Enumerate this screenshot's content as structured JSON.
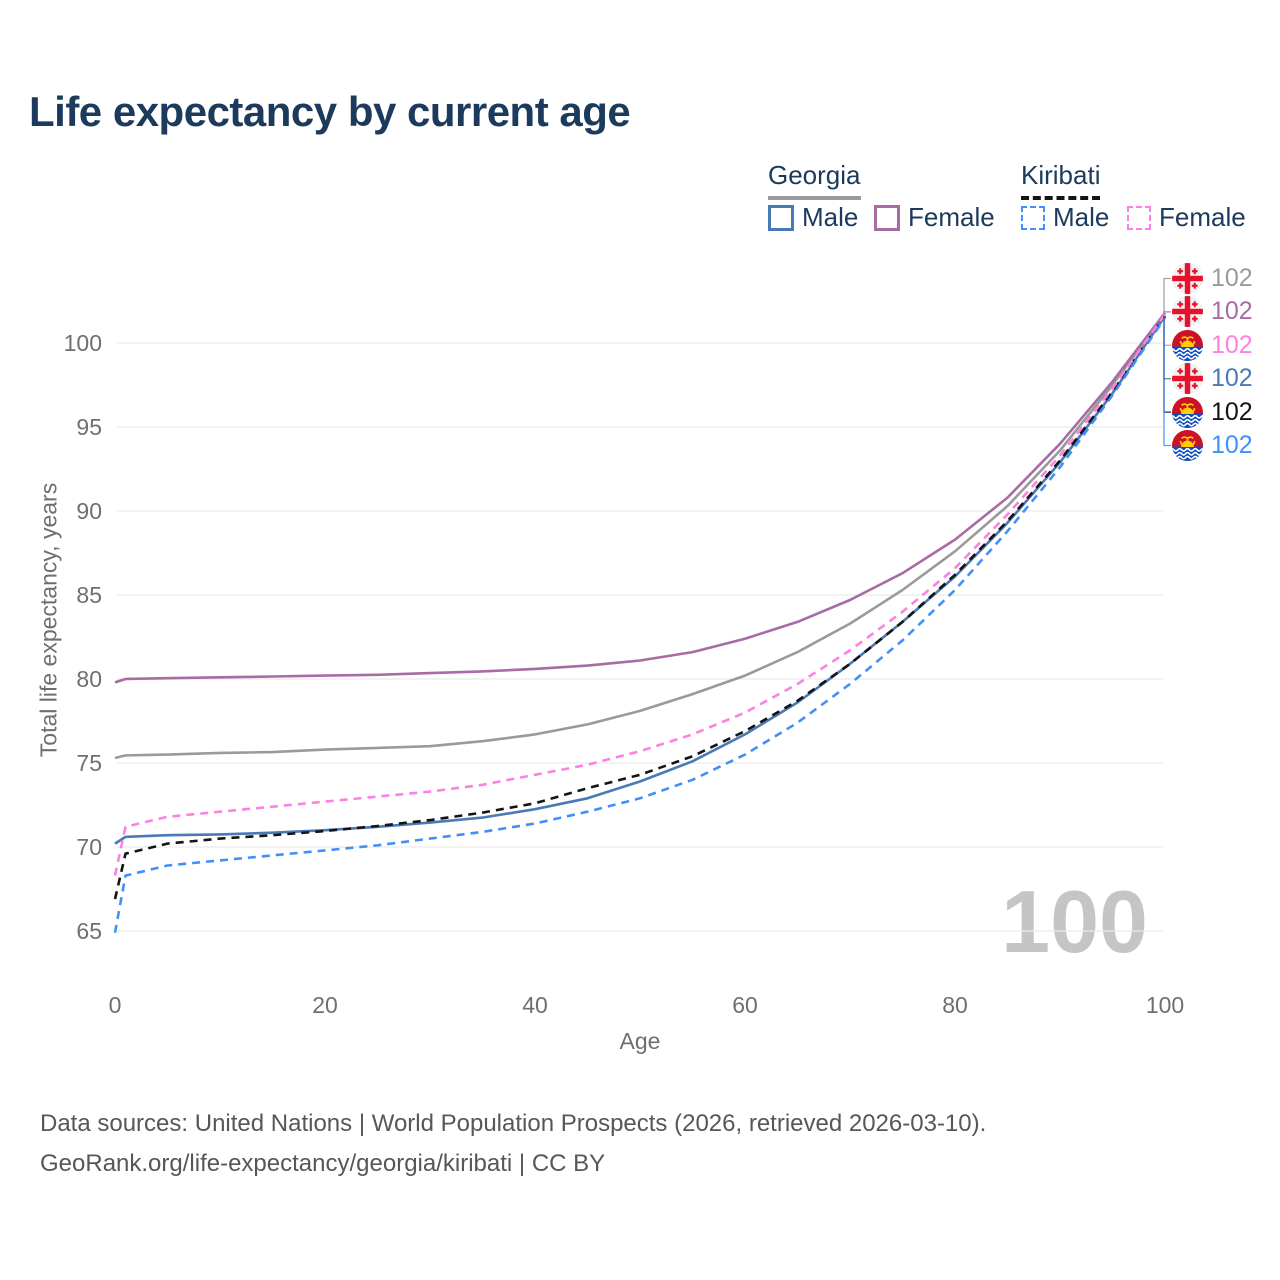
{
  "title": "Life expectancy by current age",
  "legend": {
    "georgia": {
      "label": "Georgia",
      "male": "Male",
      "female": "Female"
    },
    "kiribati": {
      "label": "Kiribati",
      "male": "Male",
      "female": "Female"
    }
  },
  "watermark": "100",
  "colors": {
    "title_text": "#1c3a5c",
    "axis_text": "#6f6f6f",
    "gridline": "#e9e9e9",
    "watermark": "#c5c5c5",
    "georgia_male": "#4a7ab5",
    "georgia_female": "#a86ba4",
    "georgia_both": "#9a9a9a",
    "kiribati_male": "#4190fa",
    "kiribati_female": "#fc81e3",
    "kiribati_both": "#141414"
  },
  "chart_data": {
    "type": "line",
    "title": "Life expectancy by current age",
    "xlabel": "Age",
    "ylabel": "Total life expectancy, years",
    "xlim": [
      0,
      100
    ],
    "ylim": [
      63,
      103
    ],
    "xticks": [
      0,
      20,
      40,
      60,
      80,
      100
    ],
    "yticks": [
      65,
      70,
      75,
      80,
      85,
      90,
      95,
      100
    ],
    "grid": "horizontal-only",
    "legend_position": "top-right",
    "x": [
      0,
      1,
      5,
      10,
      15,
      20,
      25,
      30,
      35,
      40,
      45,
      50,
      55,
      60,
      65,
      70,
      75,
      80,
      85,
      90,
      95,
      100
    ],
    "series": [
      {
        "id": "georgia-both",
        "name": "Georgia (both sexes)",
        "country": "Georgia",
        "sex": "both",
        "color": "#9a9a9a",
        "dash": null,
        "values": [
          75.3,
          75.45,
          75.5,
          75.6,
          75.65,
          75.8,
          75.9,
          76.0,
          76.3,
          76.7,
          77.3,
          78.1,
          79.1,
          80.2,
          81.6,
          83.3,
          85.3,
          87.6,
          90.3,
          93.6,
          97.5,
          101.7
        ]
      },
      {
        "id": "georgia-female",
        "name": "Georgia Female",
        "country": "Georgia",
        "sex": "female",
        "color": "#a86ba4",
        "dash": null,
        "values": [
          79.8,
          80.0,
          80.05,
          80.1,
          80.15,
          80.2,
          80.25,
          80.35,
          80.45,
          80.6,
          80.8,
          81.1,
          81.6,
          82.4,
          83.4,
          84.7,
          86.3,
          88.3,
          90.8,
          94.0,
          97.7,
          101.8
        ]
      },
      {
        "id": "georgia-male",
        "name": "Georgia Male",
        "country": "Georgia",
        "sex": "male",
        "color": "#4a7ab5",
        "dash": null,
        "values": [
          70.2,
          70.6,
          70.7,
          70.75,
          70.85,
          71.0,
          71.2,
          71.45,
          71.75,
          72.25,
          72.9,
          73.9,
          75.1,
          76.7,
          78.6,
          80.9,
          83.4,
          86.1,
          89.3,
          92.9,
          97.0,
          101.6
        ]
      },
      {
        "id": "kiribati-both",
        "name": "Kiribati (both sexes)",
        "country": "Kiribati",
        "sex": "both",
        "color": "#141414",
        "dash": "8 6",
        "values": [
          66.9,
          69.6,
          70.2,
          70.5,
          70.7,
          70.95,
          71.25,
          71.6,
          72.05,
          72.6,
          73.5,
          74.3,
          75.4,
          76.9,
          78.7,
          80.9,
          83.4,
          86.2,
          89.4,
          93.0,
          97.1,
          101.6
        ]
      },
      {
        "id": "kiribati-female",
        "name": "Kiribati Female",
        "country": "Kiribati",
        "sex": "female",
        "color": "#fc81e3",
        "dash": "8 6",
        "values": [
          68.3,
          71.2,
          71.8,
          72.1,
          72.4,
          72.7,
          73.0,
          73.3,
          73.7,
          74.3,
          74.9,
          75.7,
          76.7,
          78.0,
          79.7,
          81.7,
          84.0,
          86.6,
          89.8,
          93.3,
          97.3,
          101.7
        ]
      },
      {
        "id": "kiribati-male",
        "name": "Kiribati Male",
        "country": "Kiribati",
        "sex": "male",
        "color": "#4190fa",
        "dash": "8 6",
        "values": [
          64.9,
          68.3,
          68.9,
          69.2,
          69.5,
          69.8,
          70.1,
          70.5,
          70.9,
          71.4,
          72.1,
          72.9,
          74.0,
          75.5,
          77.4,
          79.7,
          82.3,
          85.3,
          88.8,
          92.6,
          96.9,
          101.5
        ]
      }
    ]
  },
  "end_labels": [
    {
      "series": "georgia-both",
      "flag": "georgia",
      "value": "102"
    },
    {
      "series": "georgia-female",
      "flag": "georgia",
      "value": "102"
    },
    {
      "series": "kiribati-female",
      "flag": "kiribati",
      "value": "102"
    },
    {
      "series": "georgia-male",
      "flag": "georgia",
      "value": "102"
    },
    {
      "series": "kiribati-both",
      "flag": "kiribati",
      "value": "102"
    },
    {
      "series": "kiribati-male",
      "flag": "kiribati",
      "value": "102"
    }
  ],
  "footer": {
    "line1": "Data sources: United Nations | World Population Prospects (2026, retrieved 2026-03-10).",
    "line2": "GeoRank.org/life-expectancy/georgia/kiribati | CC BY"
  }
}
